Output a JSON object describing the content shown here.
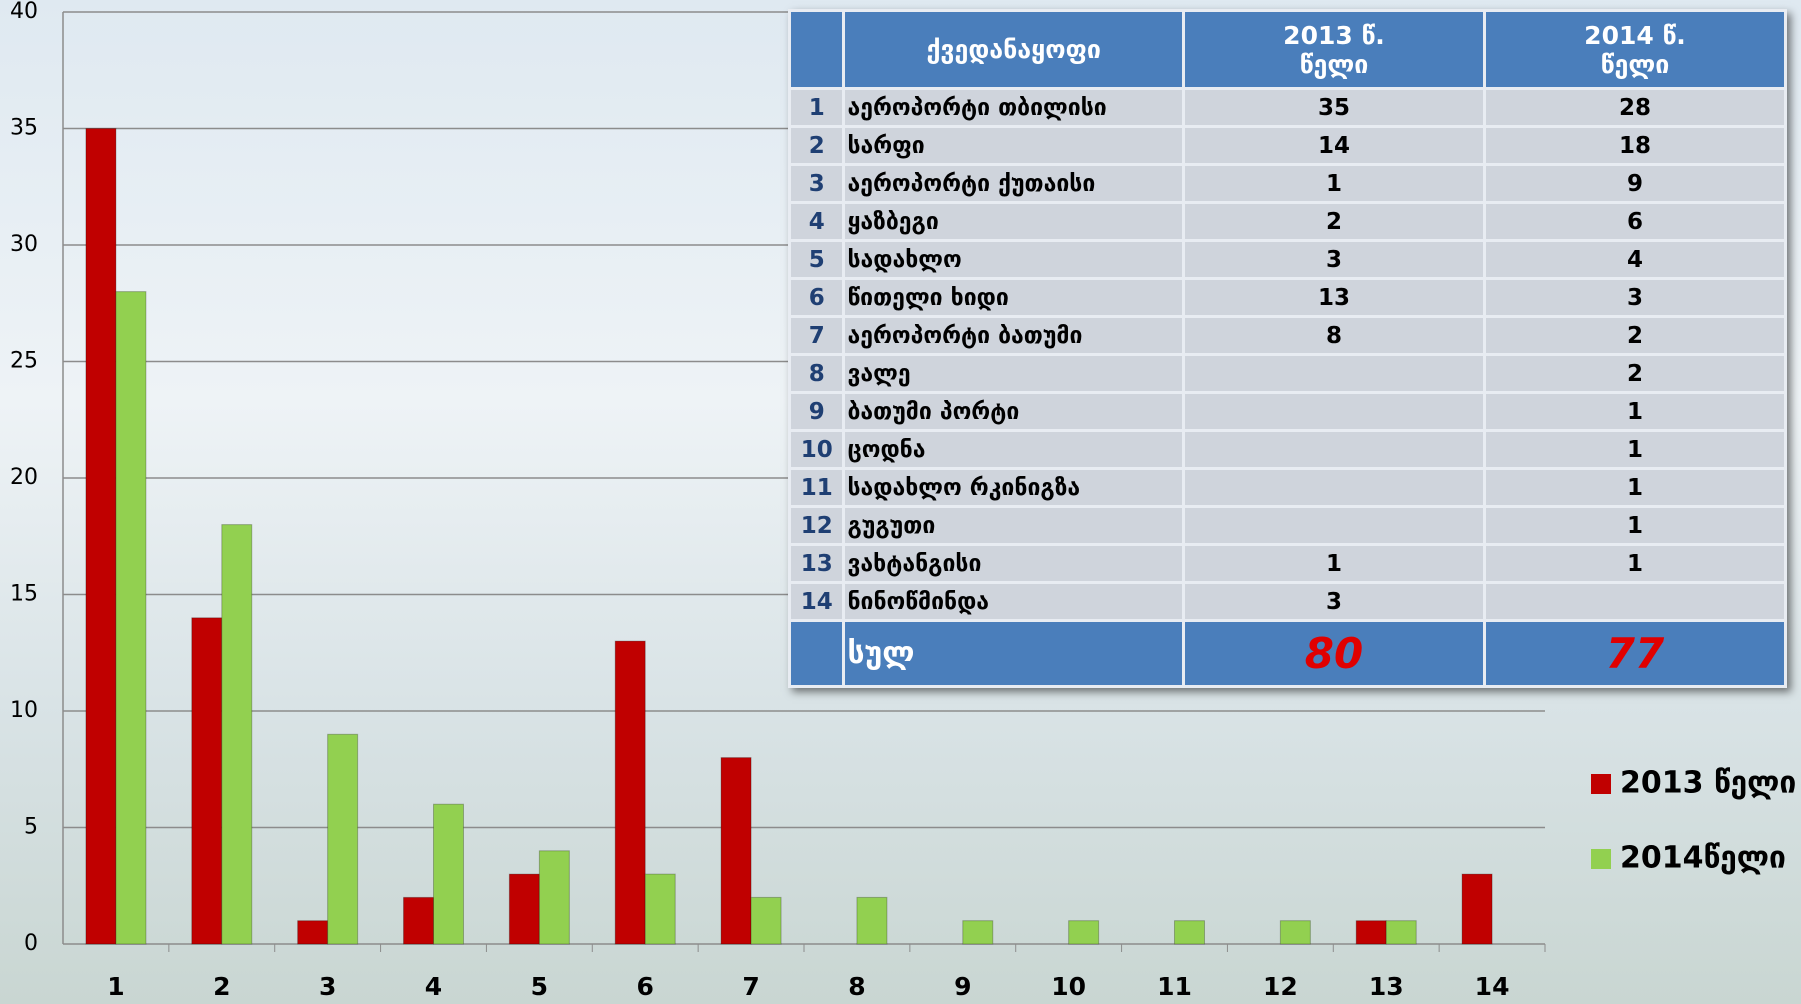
{
  "chart_data": {
    "type": "bar",
    "categories": [
      "1",
      "2",
      "3",
      "4",
      "5",
      "6",
      "7",
      "8",
      "9",
      "10",
      "11",
      "12",
      "13",
      "14"
    ],
    "series": [
      {
        "name": "2013 წელი",
        "color": "#c00000",
        "values": [
          35,
          14,
          1,
          2,
          3,
          13,
          8,
          null,
          null,
          null,
          null,
          null,
          1,
          3
        ]
      },
      {
        "name": "2014წელი",
        "color": "#92d050",
        "values": [
          28,
          18,
          9,
          6,
          4,
          3,
          2,
          2,
          1,
          1,
          1,
          1,
          1,
          null
        ]
      }
    ],
    "ylim": [
      0,
      40
    ],
    "yticks": [
      0,
      5,
      10,
      15,
      20,
      25,
      30,
      35,
      40
    ],
    "grid": true,
    "legend": "right"
  },
  "table": {
    "header": [
      "ქვედანაყოფი",
      "2013 წ. წელი",
      "2014 წ. წელი"
    ],
    "rows": [
      [
        "1",
        "აეროპორტი თბილისი",
        "35",
        "28"
      ],
      [
        "2",
        "სარფი",
        "14",
        "18"
      ],
      [
        "3",
        "აეროპორტი ქუთაისი",
        "1",
        "9"
      ],
      [
        "4",
        "ყაზბეგი",
        "2",
        "6"
      ],
      [
        "5",
        "სადახლო",
        "3",
        "4"
      ],
      [
        "6",
        "წითელი ხიდი",
        "13",
        "3"
      ],
      [
        "7",
        "აეროპორტი ბათუმი",
        "8",
        "2"
      ],
      [
        "8",
        "ვალე",
        null,
        "2"
      ],
      [
        "9",
        "ბათუმი პორტი",
        null,
        "1"
      ],
      [
        "10",
        "ცოდნა",
        null,
        "1"
      ],
      [
        "11",
        "სადახლო რკინიგზა",
        null,
        "1"
      ],
      [
        "12",
        "გუგუთი",
        null,
        "1"
      ],
      [
        "13",
        "ვახტანგისი",
        "1",
        "1"
      ],
      [
        "14",
        "ნინოწმინდა",
        "3",
        null
      ]
    ],
    "total": [
      "სულ",
      "80",
      "77"
    ]
  }
}
